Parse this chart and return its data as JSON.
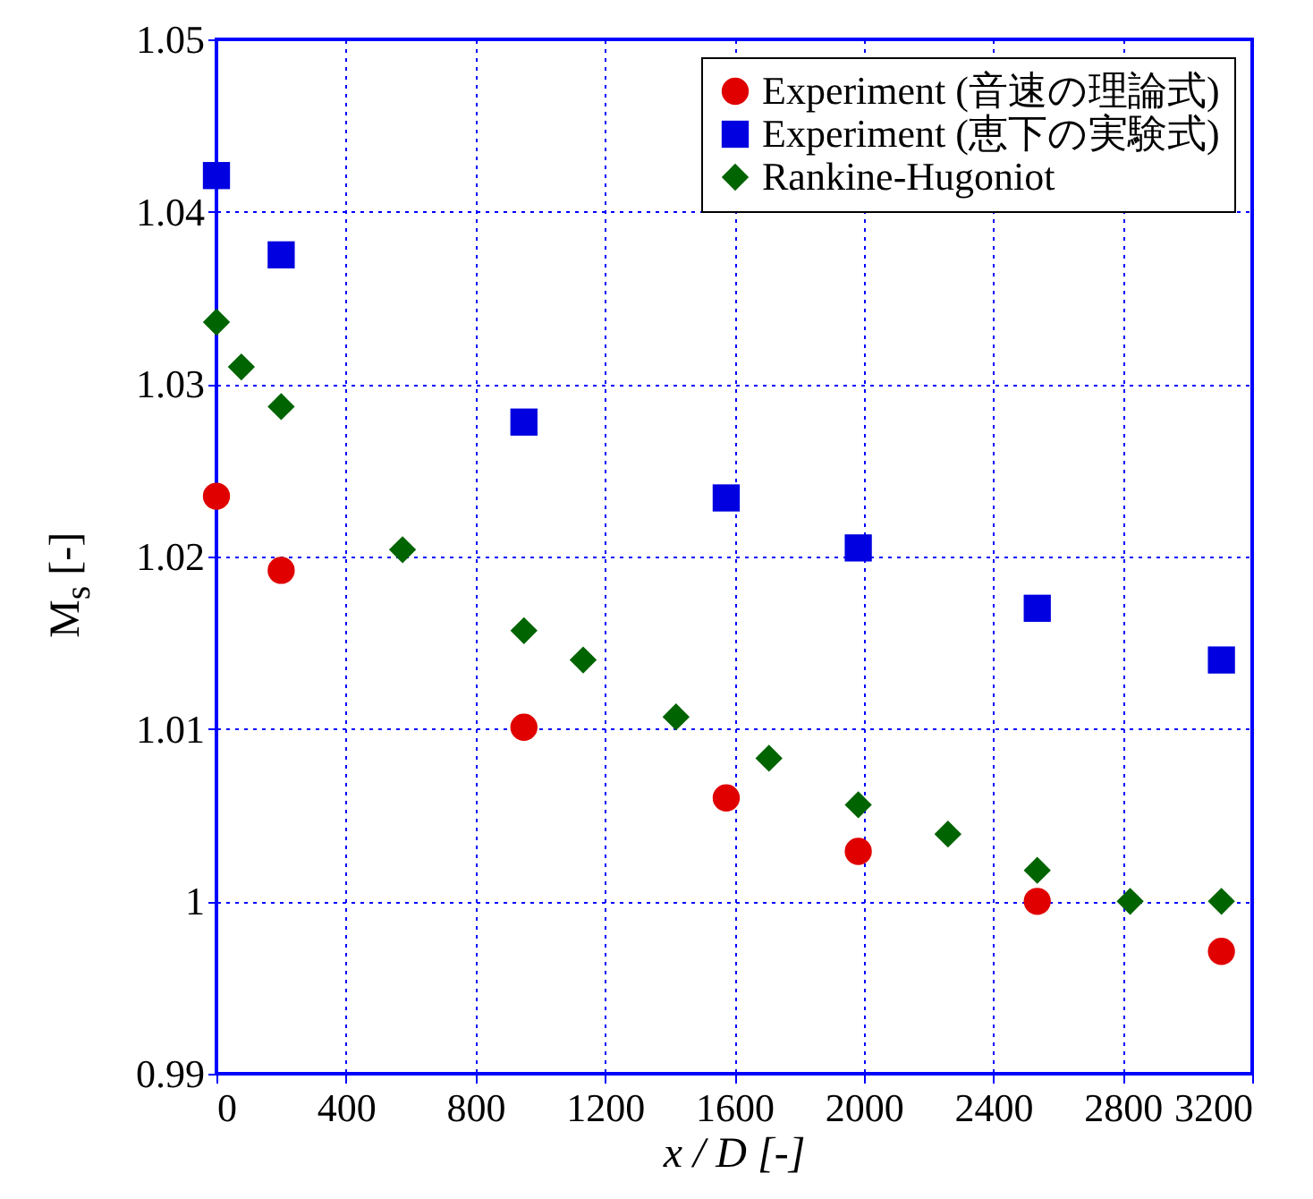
{
  "chart_data": {
    "type": "scatter",
    "xlabel": "x / D [-]",
    "ylabel": "M$_{s}$ [-]",
    "xlim": [
      0,
      3200
    ],
    "xticks": [
      0,
      400,
      800,
      1200,
      1600,
      2000,
      2400,
      2800,
      3200
    ],
    "ylim": [
      0.99,
      1.05
    ],
    "yticks": [
      0.99,
      1,
      1.01,
      1.02,
      1.03,
      1.04,
      1.05
    ],
    "grid": true,
    "legend": "top right",
    "series": [
      {
        "name": "Experiment (音速の理論式)",
        "color": "#e00000",
        "marker": "circle",
        "x": [
          0,
          200,
          950,
          1575,
          1983,
          2536,
          3105
        ],
        "values": [
          1.0235,
          1.0192,
          1.0101,
          1.006,
          1.0029,
          1.0,
          0.9971
        ]
      },
      {
        "name": "Experiment (恵下の実験式)",
        "color": "#0000e0",
        "marker": "square",
        "x": [
          0,
          200,
          950,
          1575,
          1983,
          2536,
          3105
        ],
        "values": [
          1.0421,
          1.0375,
          1.0278,
          1.0234,
          1.0205,
          1.017,
          1.014
        ]
      },
      {
        "name": "Rankine-Hugoniot",
        "color": "#006400",
        "marker": "diamond",
        "x": [
          0,
          77,
          200,
          575,
          950,
          1133,
          1420,
          1707,
          1983,
          2260,
          2536,
          2823,
          3105
        ],
        "values": [
          1.0336,
          1.031,
          1.0287,
          1.0204,
          1.0157,
          1.014,
          1.0107,
          1.0083,
          1.0056,
          1.0039,
          1.0018,
          1.0,
          1.0
        ]
      }
    ]
  }
}
